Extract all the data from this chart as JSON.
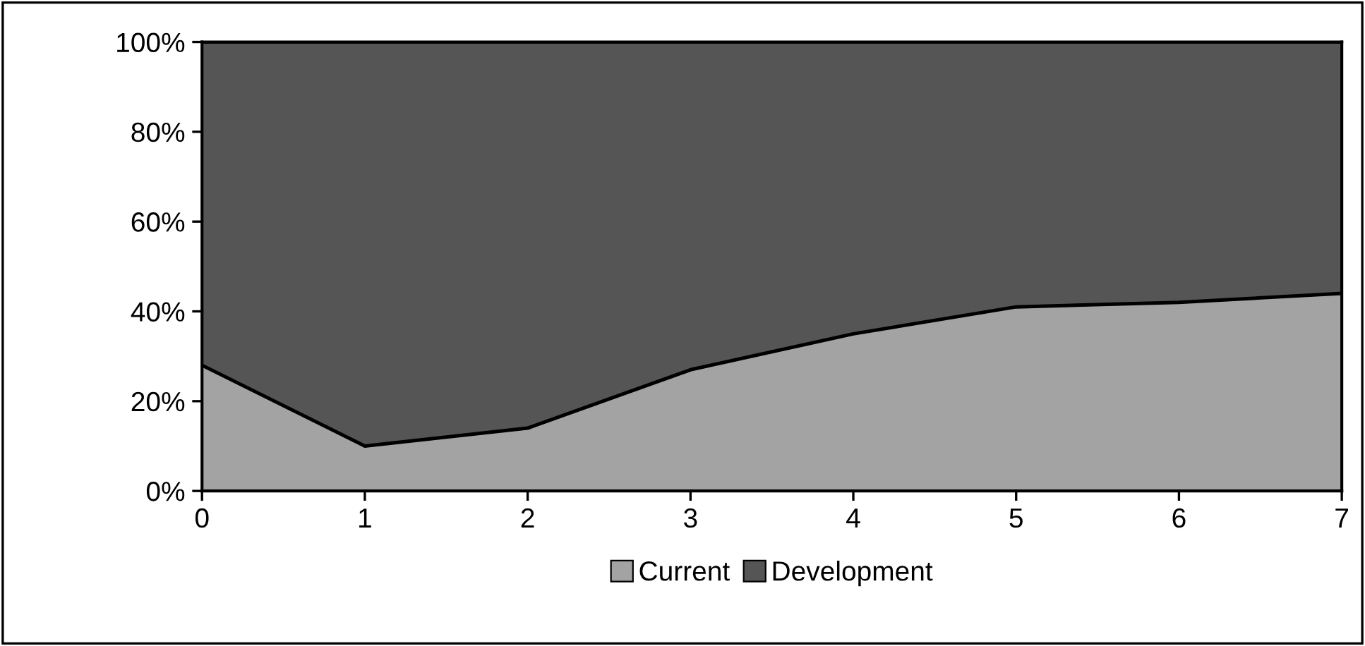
{
  "chart_data": {
    "type": "area",
    "stacked": true,
    "x": [
      0,
      1,
      2,
      3,
      4,
      5,
      6,
      7
    ],
    "series": [
      {
        "name": "Current",
        "color": "#a3a3a3",
        "values": [
          28,
          10,
          14,
          27,
          35,
          41,
          42,
          44
        ]
      },
      {
        "name": "Development",
        "color": "#555555",
        "values": [
          72,
          90,
          86,
          73,
          65,
          59,
          58,
          56
        ]
      }
    ],
    "xlim": [
      0,
      7
    ],
    "xticks": [
      0,
      1,
      2,
      3,
      4,
      5,
      6,
      7
    ],
    "ylim": [
      0,
      100
    ],
    "yticks": [
      {
        "value": 0,
        "label": "0%"
      },
      {
        "value": 20,
        "label": "20%"
      },
      {
        "value": 40,
        "label": "40%"
      },
      {
        "value": 60,
        "label": "60%"
      },
      {
        "value": 80,
        "label": "80%"
      },
      {
        "value": 100,
        "label": "100%"
      }
    ],
    "grid": false,
    "legend": "bottom"
  }
}
